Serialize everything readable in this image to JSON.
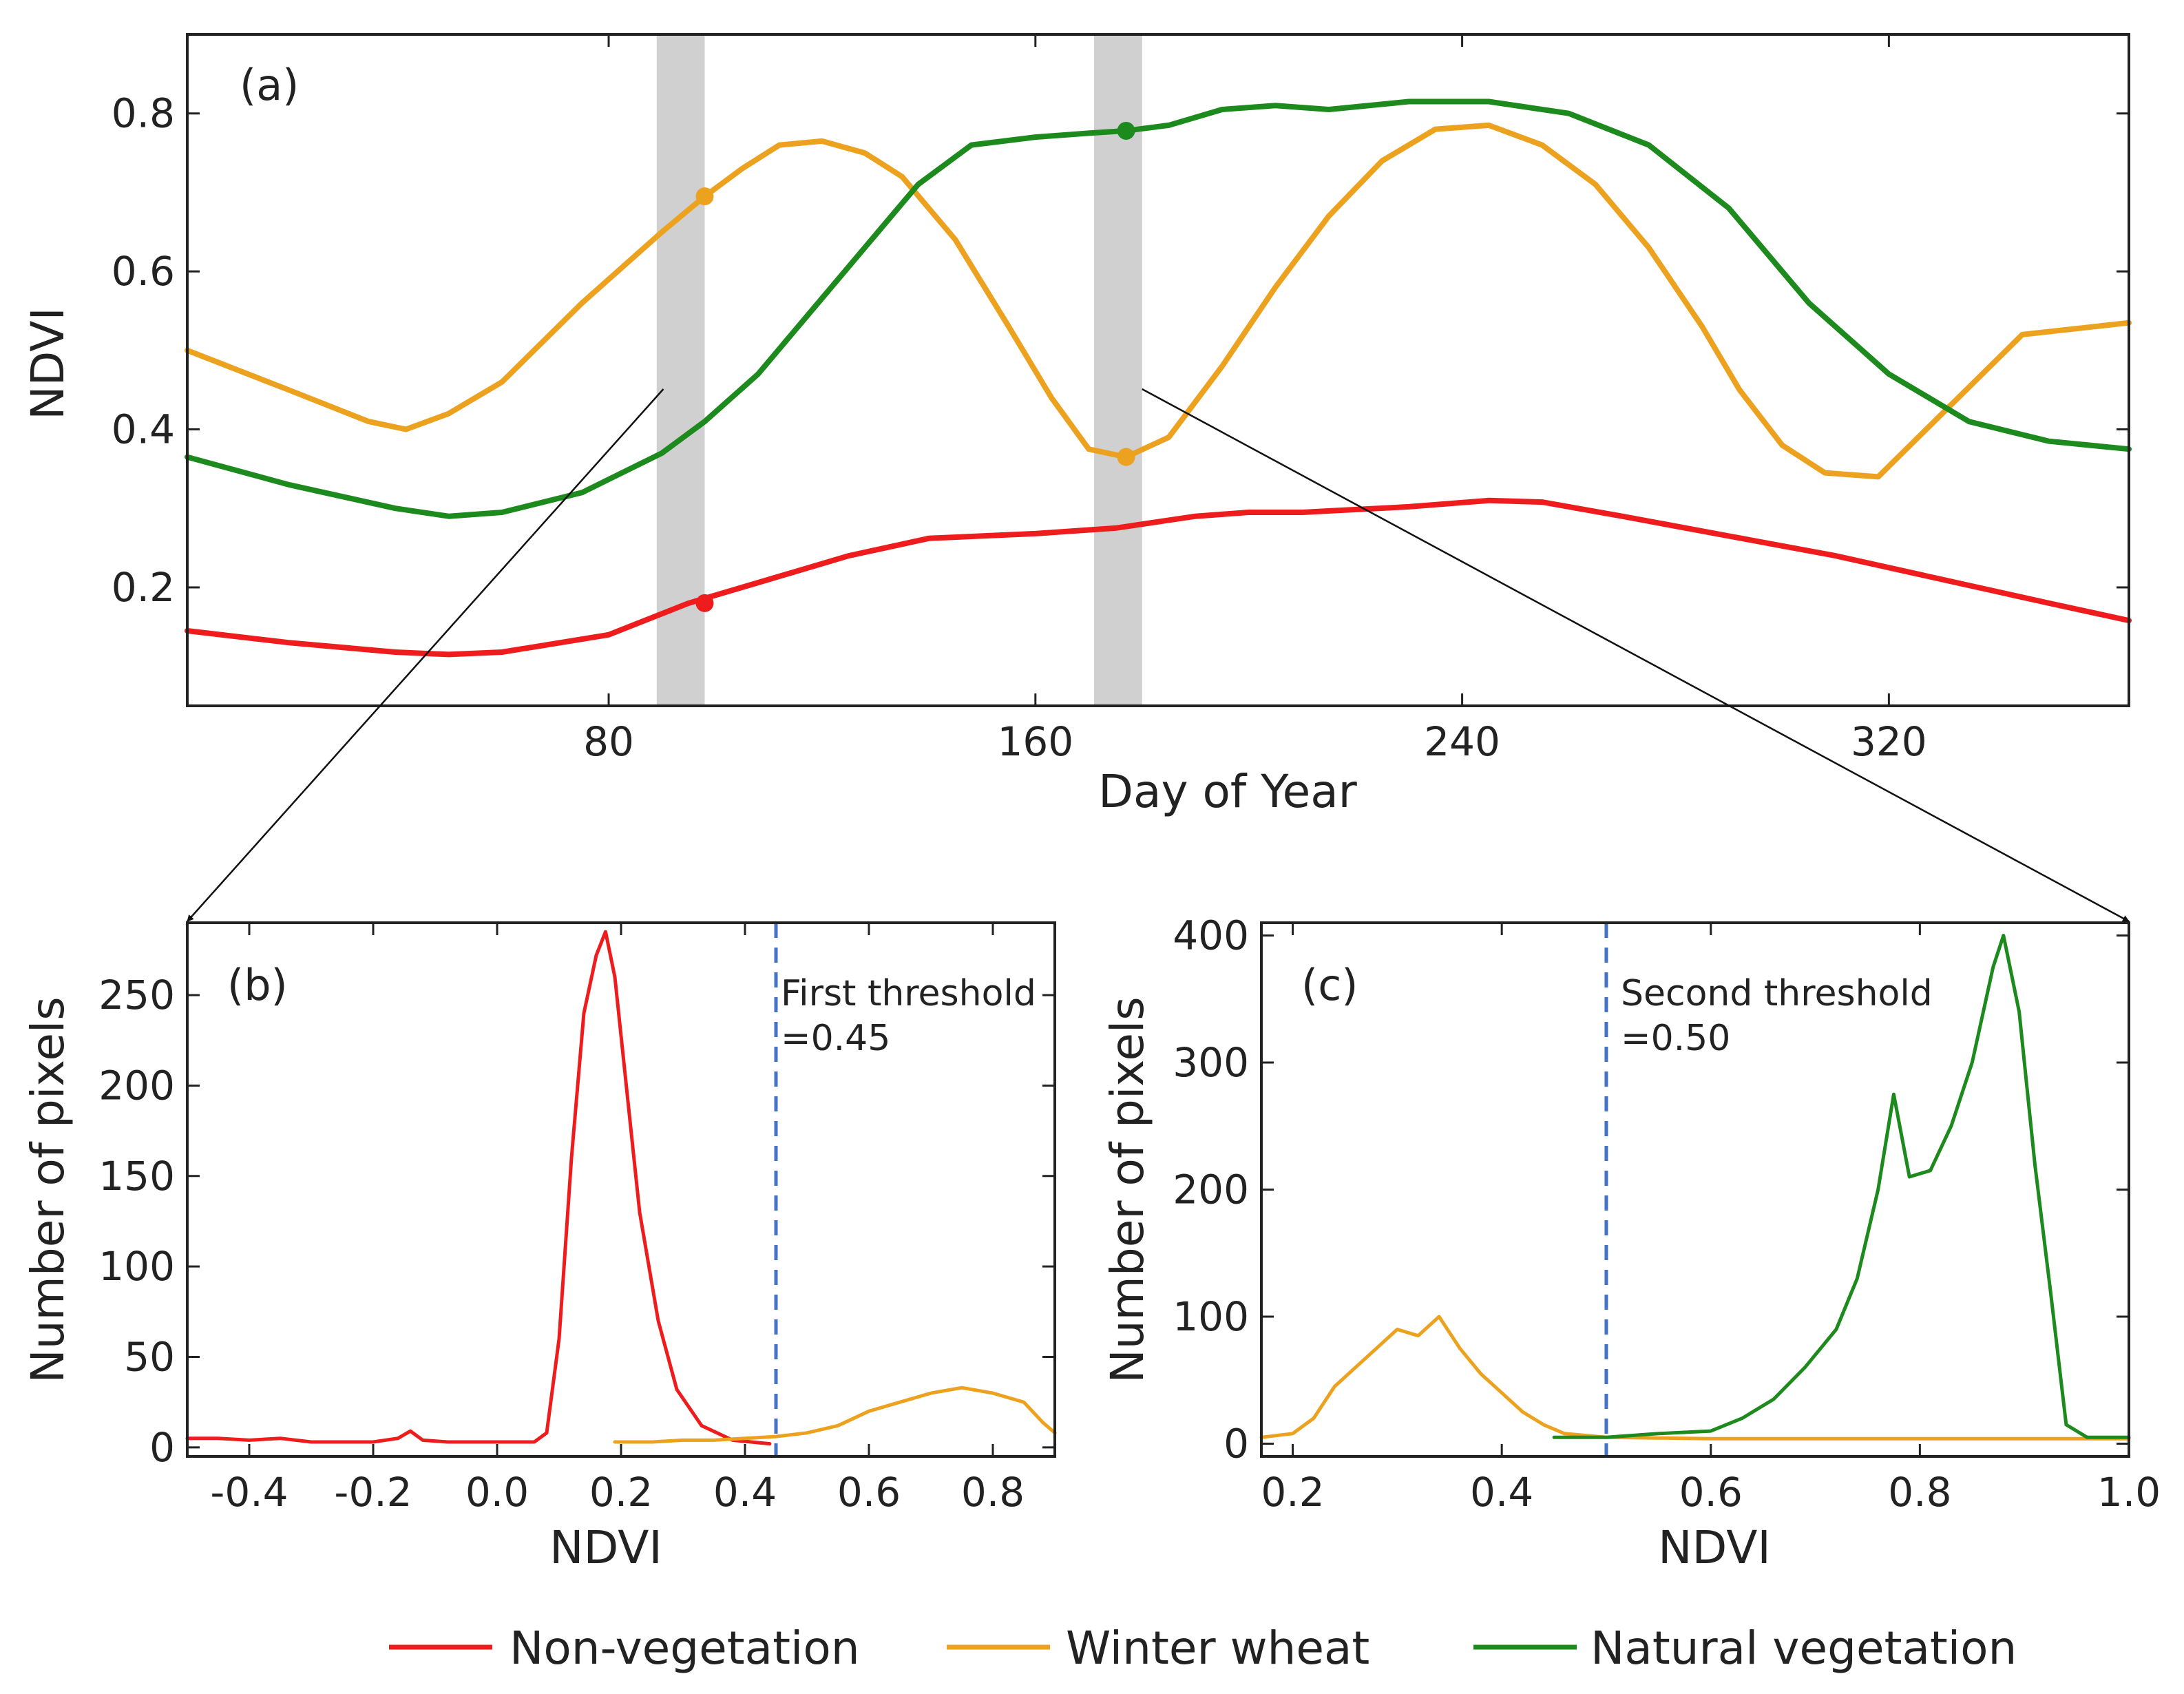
{
  "colors": {
    "non_vegetation": "#ee1c1c",
    "winter_wheat": "#eca21f",
    "natural_vegetation": "#1c8a1c",
    "threshold": "#4472c4",
    "shade": "#d0d0d0",
    "connector": "#111111"
  },
  "legend": {
    "non_vegetation": "Non-vegetation",
    "winter_wheat": "Winter wheat",
    "natural_vegetation": "Natural vegetation"
  },
  "chart_data": [
    {
      "panel": "(a)",
      "type": "line",
      "xlabel": "Day of Year",
      "ylabel": "NDVI",
      "xlim": [
        1,
        365
      ],
      "ylim": [
        0.05,
        0.9
      ],
      "xticks": [
        80,
        160,
        240,
        320
      ],
      "yticks": [
        0.2,
        0.4,
        0.6,
        0.8
      ],
      "shaded_windows": [
        [
          89,
          98
        ],
        [
          171,
          180
        ]
      ],
      "series": [
        {
          "name": "Non-vegetation",
          "color_key": "non_vegetation",
          "x": [
            1,
            20,
            40,
            50,
            60,
            80,
            95,
            110,
            125,
            140,
            160,
            175,
            190,
            200,
            210,
            230,
            245,
            255,
            270,
            290,
            310,
            330,
            350,
            365
          ],
          "y": [
            0.145,
            0.13,
            0.118,
            0.115,
            0.118,
            0.14,
            0.18,
            0.21,
            0.24,
            0.262,
            0.268,
            0.275,
            0.29,
            0.295,
            0.295,
            0.302,
            0.31,
            0.308,
            0.29,
            0.265,
            0.24,
            0.21,
            0.18,
            0.158
          ]
        },
        {
          "name": "Winter wheat",
          "color_key": "winter_wheat",
          "x": [
            1,
            20,
            35,
            42,
            50,
            60,
            75,
            90,
            98,
            105,
            112,
            120,
            128,
            135,
            145,
            155,
            163,
            170,
            177,
            185,
            195,
            205,
            215,
            225,
            235,
            245,
            255,
            265,
            275,
            285,
            292,
            300,
            308,
            318,
            330,
            345,
            365
          ],
          "y": [
            0.5,
            0.45,
            0.41,
            0.4,
            0.42,
            0.46,
            0.56,
            0.65,
            0.695,
            0.73,
            0.76,
            0.765,
            0.75,
            0.72,
            0.64,
            0.53,
            0.44,
            0.375,
            0.365,
            0.39,
            0.48,
            0.58,
            0.67,
            0.74,
            0.78,
            0.785,
            0.76,
            0.71,
            0.63,
            0.53,
            0.45,
            0.38,
            0.345,
            0.34,
            0.42,
            0.52,
            0.535
          ]
        },
        {
          "name": "Natural vegetation",
          "color_key": "natural_vegetation",
          "x": [
            1,
            20,
            40,
            50,
            60,
            75,
            90,
            98,
            108,
            118,
            128,
            138,
            148,
            160,
            170,
            177,
            185,
            195,
            205,
            215,
            230,
            245,
            260,
            275,
            290,
            305,
            320,
            335,
            350,
            365
          ],
          "y": [
            0.365,
            0.33,
            0.3,
            0.29,
            0.295,
            0.32,
            0.37,
            0.41,
            0.47,
            0.55,
            0.63,
            0.71,
            0.76,
            0.77,
            0.775,
            0.778,
            0.785,
            0.805,
            0.81,
            0.805,
            0.815,
            0.815,
            0.8,
            0.76,
            0.68,
            0.56,
            0.47,
            0.41,
            0.385,
            0.375
          ]
        }
      ],
      "markers": [
        {
          "series": "Winter wheat",
          "color_key": "winter_wheat",
          "x": 98,
          "y": 0.695
        },
        {
          "series": "Non-vegetation",
          "color_key": "non_vegetation",
          "x": 98,
          "y": 0.18
        },
        {
          "series": "Natural vegetation",
          "color_key": "natural_vegetation",
          "x": 177,
          "y": 0.778
        },
        {
          "series": "Winter wheat",
          "color_key": "winter_wheat",
          "x": 177,
          "y": 0.365
        }
      ]
    },
    {
      "panel": "(b)",
      "type": "line",
      "xlabel": "NDVI",
      "ylabel": "Number of pixels",
      "xlim": [
        -0.5,
        0.9
      ],
      "ylim": [
        -5,
        290
      ],
      "xticks": [
        -0.4,
        -0.2,
        0.0,
        0.2,
        0.4,
        0.6,
        0.8
      ],
      "xticklabels": [
        "-0.4",
        "-0.2",
        "0.0",
        "0.2",
        "0.4",
        "0.6",
        "0.8"
      ],
      "yticks": [
        0,
        50,
        100,
        150,
        200,
        250
      ],
      "threshold": {
        "x": 0.45,
        "label_line1": "First threshold",
        "label_line2": "=0.45"
      },
      "series": [
        {
          "name": "Non-vegetation",
          "color_key": "non_vegetation",
          "x": [
            -0.5,
            -0.45,
            -0.4,
            -0.35,
            -0.3,
            -0.2,
            -0.16,
            -0.14,
            -0.12,
            -0.08,
            0.0,
            0.06,
            0.08,
            0.1,
            0.12,
            0.14,
            0.16,
            0.175,
            0.19,
            0.21,
            0.23,
            0.26,
            0.29,
            0.33,
            0.38,
            0.44
          ],
          "y": [
            5,
            5,
            4,
            5,
            3,
            3,
            5,
            9,
            4,
            3,
            3,
            3,
            8,
            60,
            160,
            240,
            272,
            285,
            260,
            195,
            130,
            70,
            32,
            12,
            4,
            2
          ]
        },
        {
          "name": "Winter wheat",
          "color_key": "winter_wheat",
          "x": [
            0.19,
            0.25,
            0.3,
            0.35,
            0.4,
            0.45,
            0.5,
            0.55,
            0.6,
            0.65,
            0.7,
            0.75,
            0.8,
            0.85,
            0.88,
            0.9
          ],
          "y": [
            3,
            3,
            4,
            4,
            5,
            6,
            8,
            12,
            20,
            25,
            30,
            33,
            30,
            25,
            14,
            8
          ]
        }
      ]
    },
    {
      "panel": "(c)",
      "type": "line",
      "xlabel": "NDVI",
      "ylabel": "Number of pixels",
      "xlim": [
        0.17,
        1.0
      ],
      "ylim": [
        -10,
        410
      ],
      "xticks": [
        0.2,
        0.4,
        0.6,
        0.8,
        1.0
      ],
      "xticklabels": [
        "0.2",
        "0.4",
        "0.6",
        "0.8",
        "1.0"
      ],
      "yticks": [
        0,
        100,
        200,
        300,
        400
      ],
      "threshold": {
        "x": 0.5,
        "label_line1": "Second threshold",
        "label_line2": "=0.50"
      },
      "series": [
        {
          "name": "Winter wheat",
          "color_key": "winter_wheat",
          "x": [
            0.17,
            0.2,
            0.22,
            0.24,
            0.26,
            0.28,
            0.3,
            0.32,
            0.34,
            0.36,
            0.38,
            0.4,
            0.42,
            0.44,
            0.46,
            0.5,
            0.6,
            0.7,
            0.8,
            0.9,
            1.0
          ],
          "y": [
            5,
            8,
            20,
            45,
            60,
            75,
            90,
            85,
            100,
            75,
            55,
            40,
            25,
            15,
            8,
            5,
            4,
            4,
            4,
            4,
            4
          ]
        },
        {
          "name": "Natural vegetation",
          "color_key": "natural_vegetation",
          "x": [
            0.45,
            0.5,
            0.55,
            0.6,
            0.63,
            0.66,
            0.69,
            0.72,
            0.74,
            0.76,
            0.775,
            0.79,
            0.81,
            0.83,
            0.85,
            0.87,
            0.88,
            0.895,
            0.91,
            0.925,
            0.94,
            0.96,
            1.0
          ],
          "y": [
            5,
            5,
            8,
            10,
            20,
            35,
            60,
            90,
            130,
            200,
            275,
            210,
            215,
            250,
            300,
            375,
            400,
            340,
            220,
            120,
            15,
            5,
            5
          ]
        }
      ]
    }
  ]
}
